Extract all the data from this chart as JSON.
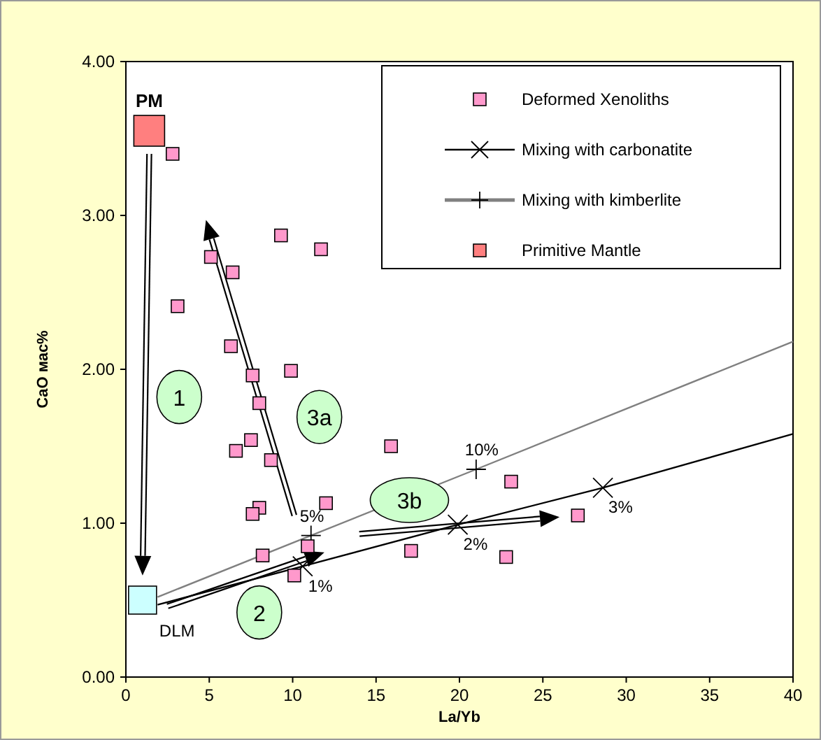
{
  "chart_data": {
    "type": "scatter",
    "xlabel": "La/Yb",
    "ylabel": "CaO мас%",
    "xlim": [
      0,
      40
    ],
    "ylim": [
      0,
      4
    ],
    "xticks": [
      0,
      5,
      10,
      15,
      20,
      25,
      30,
      35,
      40
    ],
    "yticks": [
      {
        "value": 0,
        "label": "0.00"
      },
      {
        "value": 1,
        "label": "1.00"
      },
      {
        "value": 2,
        "label": "2.00"
      },
      {
        "value": 3,
        "label": "3.00"
      },
      {
        "value": 4,
        "label": "4.00"
      }
    ],
    "grid": false,
    "legend": "top right",
    "series": [
      {
        "name": "Deformed Xenoliths",
        "marker": "square",
        "color": "#ff99cc",
        "x": [
          2.8,
          9.3,
          11.7,
          5.1,
          6.4,
          3.1,
          6.3,
          9.9,
          7.6,
          8.0,
          7.5,
          6.6,
          8.7,
          15.9,
          12.0,
          8.0,
          7.6,
          10.9,
          8.2,
          10.1,
          17.1,
          23.1,
          27.1,
          22.8
        ],
        "values": [
          3.4,
          2.87,
          2.78,
          2.73,
          2.63,
          2.41,
          2.15,
          1.99,
          1.96,
          1.78,
          1.54,
          1.47,
          1.41,
          1.5,
          1.13,
          1.1,
          1.06,
          0.85,
          0.79,
          0.66,
          0.82,
          1.27,
          1.05,
          0.78
        ]
      },
      {
        "name": "Mixing with carbonatite",
        "type": "line",
        "marker": "x",
        "color": "#000000",
        "x": [
          1.9,
          10.6,
          19.9,
          28.6,
          40
        ],
        "values": [
          0.47,
          0.72,
          0.99,
          1.23,
          1.58
        ]
      },
      {
        "name": "Mixing with kimberlite",
        "type": "line",
        "marker": "cross",
        "color": "#808080",
        "x": [
          1.9,
          11.1,
          21.0,
          40
        ],
        "values": [
          0.52,
          0.92,
          1.35,
          2.18
        ]
      },
      {
        "name": "Primitive Mantle",
        "marker": "square",
        "color": "#ff7f7f",
        "x": [
          1.4
        ],
        "values": [
          3.55
        ]
      },
      {
        "marker": "square",
        "color": "#ccffff",
        "x": [
          1.0
        ],
        "values": [
          0.5
        ]
      }
    ],
    "annotations": [
      {
        "text": "PM",
        "x": 1.4,
        "y": 3.55
      },
      {
        "text": "DLM",
        "x": 1.0,
        "y": 0.5
      },
      {
        "text": "1",
        "x": 3.2,
        "y": 1.82
      },
      {
        "text": "2",
        "x": 8.0,
        "y": 0.42
      },
      {
        "text": "3a",
        "x": 11.6,
        "y": 1.69
      },
      {
        "text": "3b",
        "x": 17.0,
        "y": 1.15
      },
      {
        "text": "1%",
        "x": 10.6,
        "y": 0.72
      },
      {
        "text": "2%",
        "x": 19.9,
        "y": 0.99
      },
      {
        "text": "3%",
        "x": 28.6,
        "y": 1.23
      },
      {
        "text": "5%",
        "x": 11.1,
        "y": 0.92
      },
      {
        "text": "10%",
        "x": 21.0,
        "y": 1.35
      }
    ]
  }
}
